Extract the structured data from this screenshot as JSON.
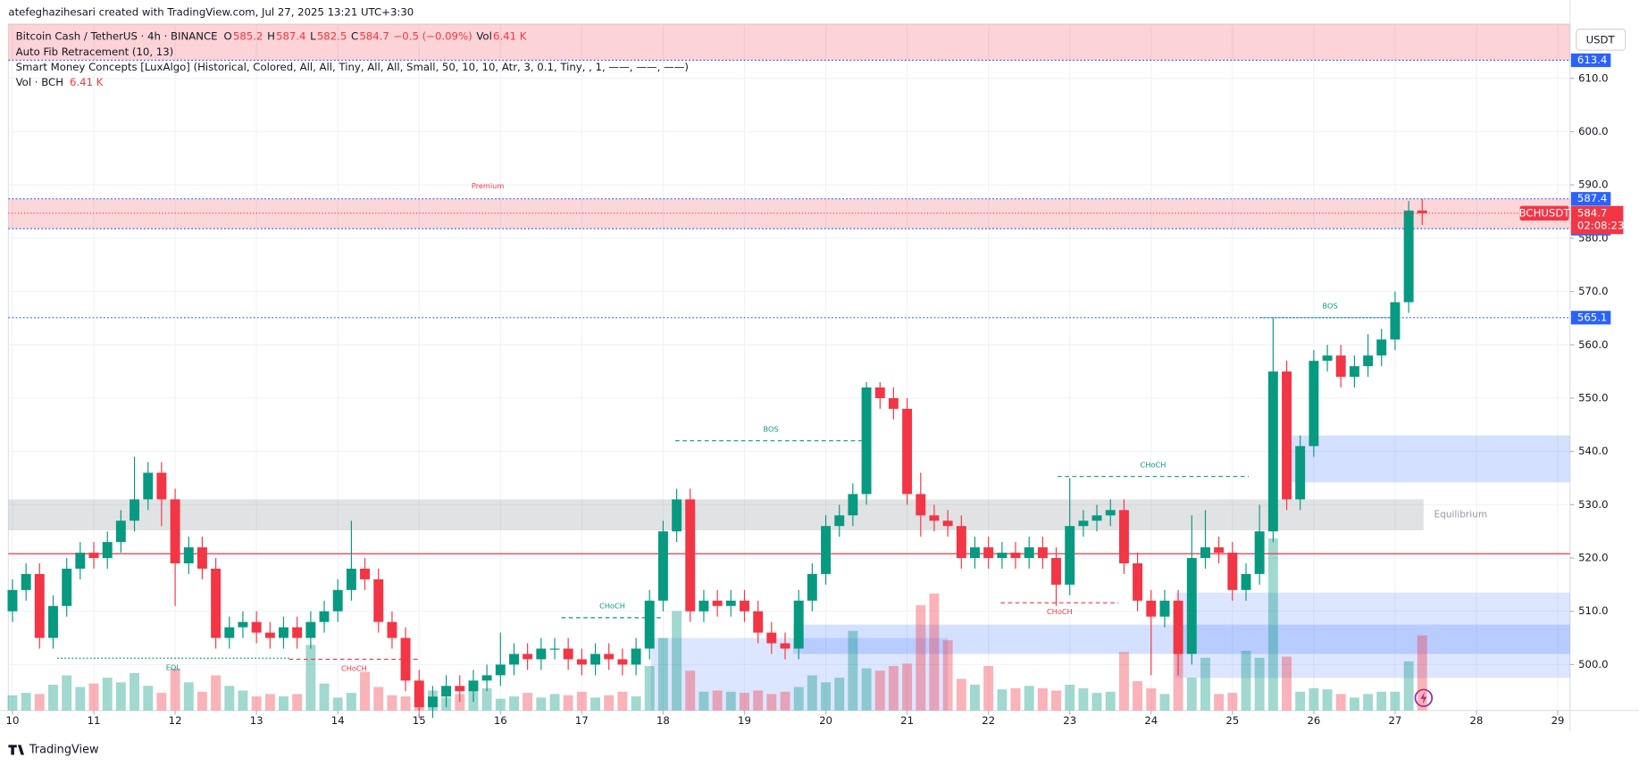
{
  "header": {
    "attribution": "atefeghazihesari created with TradingView.com, Jul 27, 2025 13:21 UTC+3:30"
  },
  "legend": {
    "symbol": "Bitcoin Cash / TetherUS · 4h · BINANCE",
    "o": "O",
    "h": "H",
    "l": "L",
    "c": "C",
    "change": "−0.5 (−0.09%)",
    "vol": "Vol",
    "vol_value": "6.41 K",
    "fib": "Auto Fib Retracement (10, 13)",
    "smc": "Smart Money Concepts [LuxAlgo] (Historical, Colored, All, All, Tiny, All, All, Small, 50, 10, 10, Atr, 3, 0.1, Tiny, , 1, ——, ——, ——)",
    "vol_study": "Vol · BCH",
    "vol_study_value": "6.41 K"
  },
  "footer": "TradingView",
  "chart_data": {
    "type": "candlestick",
    "currency": "USDT",
    "symbol": "BCHUSDT",
    "countdown": "02:08:23",
    "up_color": "#089981",
    "down_color": "#f23645",
    "volume_up_color": "rgba(8,153,129,0.38)",
    "volume_down_color": "rgba(242,54,69,0.38)",
    "grid": true,
    "xlim": [
      9.95,
      29.15
    ],
    "xticks": [
      10,
      11,
      12,
      13,
      14,
      15,
      16,
      17,
      18,
      19,
      20,
      21,
      22,
      23,
      24,
      25,
      26,
      27,
      28,
      29
    ],
    "ylim": [
      491.4,
      620.2
    ],
    "yticks": [
      {
        "value": 500,
        "label": "500.0"
      },
      {
        "value": 510,
        "label": "510.0"
      },
      {
        "value": 520,
        "label": "520.0"
      },
      {
        "value": 530,
        "label": "530.0"
      },
      {
        "value": 540,
        "label": "540.0"
      },
      {
        "value": 550,
        "label": "550.0"
      },
      {
        "value": 560,
        "label": "560.0"
      },
      {
        "value": 570,
        "label": "570.0"
      },
      {
        "value": 580,
        "label": "580.0"
      },
      {
        "value": 590,
        "label": "590.0"
      },
      {
        "value": 600,
        "label": "600.0"
      },
      {
        "value": 610,
        "label": "610.0"
      }
    ],
    "vlim": [
      0,
      58.7
    ],
    "x": [
      10,
      10.167,
      10.333,
      10.5,
      10.667,
      10.833,
      11,
      11.167,
      11.333,
      11.5,
      11.667,
      11.833,
      12,
      12.167,
      12.333,
      12.5,
      12.667,
      12.833,
      13,
      13.167,
      13.333,
      13.5,
      13.667,
      13.833,
      14,
      14.167,
      14.333,
      14.5,
      14.667,
      14.833,
      15,
      15.167,
      15.333,
      15.5,
      15.667,
      15.833,
      16,
      16.167,
      16.333,
      16.5,
      16.667,
      16.833,
      17,
      17.167,
      17.333,
      17.5,
      17.667,
      17.833,
      18,
      18.167,
      18.333,
      18.5,
      18.667,
      18.833,
      19,
      19.167,
      19.333,
      19.5,
      19.667,
      19.833,
      20,
      20.167,
      20.333,
      20.5,
      20.667,
      20.833,
      21,
      21.167,
      21.333,
      21.5,
      21.667,
      21.833,
      22,
      22.167,
      22.333,
      22.5,
      22.667,
      22.833,
      23,
      23.167,
      23.333,
      23.5,
      23.667,
      23.833,
      24,
      24.167,
      24.333,
      24.5,
      24.667,
      24.833,
      25,
      25.167,
      25.333,
      25.5,
      25.667,
      25.833,
      26,
      26.167,
      26.333,
      26.5,
      26.667,
      26.833,
      27,
      27.167,
      27.333
    ],
    "open": [
      510,
      514,
      517,
      505,
      511,
      518,
      521,
      520,
      523,
      527,
      531,
      536,
      531,
      519,
      522,
      518,
      505,
      507,
      508,
      506,
      505,
      507,
      505,
      508,
      510,
      514,
      518,
      516,
      508,
      505,
      497,
      492,
      494,
      496,
      495,
      497,
      498,
      500,
      502,
      501,
      503,
      503,
      501,
      500,
      502,
      501,
      500,
      503,
      512,
      525,
      531,
      510,
      512,
      511,
      512,
      510,
      506,
      504,
      503,
      512,
      517,
      526,
      528,
      532,
      552,
      550,
      548,
      532,
      528,
      527,
      526,
      520,
      522,
      520,
      521,
      520,
      522,
      520,
      515,
      526,
      527,
      528,
      529,
      519,
      512,
      509,
      512,
      502,
      520,
      522,
      521,
      514,
      517,
      525,
      555,
      531,
      541,
      557,
      558,
      554,
      556,
      558,
      561,
      568,
      585.2
    ],
    "high": [
      516,
      519,
      519,
      513,
      520,
      523,
      523,
      525,
      529,
      539,
      538,
      538,
      533,
      524,
      524,
      520,
      509,
      510,
      510,
      508,
      509,
      509,
      510,
      512,
      516,
      527,
      520,
      518,
      510,
      507,
      499,
      496,
      498,
      498,
      499,
      500,
      506,
      504,
      504,
      505,
      505,
      505,
      503,
      504,
      504,
      503,
      505,
      514,
      527,
      533,
      533,
      514,
      514,
      514,
      514,
      512,
      508,
      506,
      514,
      519,
      528,
      530,
      534,
      553,
      553,
      552,
      550,
      536,
      530,
      529,
      528,
      524,
      524,
      523,
      523,
      524,
      524,
      522,
      535,
      529,
      530,
      531,
      531,
      521,
      514,
      514,
      514,
      528,
      529,
      524,
      523,
      519,
      530,
      565.1,
      557,
      543,
      559,
      560,
      560,
      558,
      562,
      563,
      570,
      587,
      587.4
    ],
    "low": [
      508,
      512,
      503,
      503,
      509,
      516,
      518,
      518,
      521,
      525,
      529,
      526,
      511,
      517,
      516,
      503,
      503,
      505,
      504,
      503,
      503,
      503,
      503,
      506,
      508,
      512,
      514,
      506,
      503,
      495,
      490,
      490,
      492,
      493,
      493,
      495,
      496,
      498,
      499,
      499,
      501,
      499,
      498,
      498,
      499,
      498,
      498,
      501,
      510,
      523,
      508,
      508,
      509,
      509,
      508,
      504,
      502,
      501,
      501,
      510,
      515,
      524,
      526,
      530,
      548,
      546,
      530,
      524,
      525,
      524,
      518,
      518,
      518,
      518,
      518,
      518,
      518,
      511,
      513,
      524,
      525,
      526,
      517,
      510,
      498,
      507,
      498,
      500,
      518,
      519,
      512,
      512,
      515,
      523,
      529,
      529,
      539,
      555,
      552,
      552,
      554,
      556,
      559,
      566,
      582.5
    ],
    "close": [
      514,
      517,
      505,
      511,
      518,
      521,
      520,
      523,
      527,
      531,
      536,
      531,
      519,
      522,
      518,
      505,
      507,
      508,
      506,
      505,
      507,
      505,
      508,
      510,
      514,
      518,
      516,
      508,
      505,
      497,
      492,
      494,
      496,
      495,
      497,
      498,
      500,
      502,
      501,
      503,
      503,
      501,
      500,
      502,
      501,
      500,
      503,
      512,
      525,
      531,
      510,
      512,
      511,
      512,
      510,
      506,
      504,
      503,
      512,
      517,
      526,
      528,
      532,
      552,
      550,
      548,
      532,
      528,
      527,
      526,
      520,
      522,
      520,
      521,
      520,
      522,
      520,
      515,
      526,
      527,
      528,
      529,
      519,
      512,
      509,
      512,
      502,
      520,
      522,
      521,
      514,
      517,
      525,
      555,
      531,
      541,
      557,
      558,
      554,
      556,
      558,
      561,
      568,
      585.2,
      584.7
    ],
    "volume": [
      1.3,
      1.5,
      1.4,
      2.2,
      3.0,
      2.0,
      2.3,
      2.8,
      2.4,
      3.2,
      2.1,
      1.5,
      3.6,
      2.4,
      1.6,
      3.0,
      2.1,
      1.7,
      1.2,
      1.4,
      1.2,
      1.4,
      5.6,
      2.3,
      1.1,
      1.5,
      3.3,
      2.0,
      1.3,
      1.2,
      1.1,
      1.7,
      1.1,
      1.4,
      1.9,
      1.9,
      1.0,
      1.2,
      1.5,
      1.1,
      1.4,
      1.3,
      1.6,
      1.1,
      1.3,
      1.6,
      1.2,
      3.8,
      6.2,
      8.5,
      3.4,
      1.6,
      1.7,
      1.6,
      1.5,
      1.7,
      1.4,
      1.6,
      2.0,
      3.0,
      2.4,
      2.8,
      6.8,
      3.6,
      3.4,
      3.8,
      4.0,
      9.0,
      10.0,
      6.0,
      2.7,
      2.2,
      3.8,
      1.8,
      1.9,
      2.1,
      1.9,
      1.7,
      2.2,
      1.9,
      1.5,
      1.6,
      5.0,
      2.5,
      1.9,
      1.4,
      5.1,
      2.8,
      4.5,
      1.4,
      1.5,
      5.1,
      4.5,
      14.7,
      4.6,
      1.6,
      1.9,
      1.8,
      1.4,
      1.1,
      1.4,
      1.6,
      1.6,
      4.2,
      6.41
    ],
    "zones": [
      {
        "ymin": 613.4,
        "ymax": 620.2,
        "xmin": 9.95,
        "xmax": 29.15,
        "color": "rgba(242,54,69,0.22)"
      },
      {
        "label": "Premium",
        "label_pos": "above",
        "ymin": 581.8,
        "ymax": 587.4,
        "xmin": 9.95,
        "xmax": 29.15,
        "color": "rgba(242,54,69,0.2)"
      },
      {
        "label": "Equilibrium",
        "label_pos": "right",
        "ymin": 525.2,
        "ymax": 531,
        "xmin": 9.95,
        "xmax": 27.35,
        "color": "rgba(120,123,134,0.22)"
      },
      {
        "ymin": 534.2,
        "ymax": 543,
        "xmin": 25.7,
        "xmax": 29.15,
        "color": "rgba(41,98,255,0.2)"
      },
      {
        "ymin": 497.5,
        "ymax": 513.5,
        "xmin": 24.3,
        "xmax": 29.15,
        "color": "rgba(41,98,255,0.16)"
      },
      {
        "ymin": 502,
        "ymax": 507.5,
        "xmin": 19.6,
        "xmax": 29.15,
        "color": "rgba(41,98,255,0.2)"
      },
      {
        "ymin": 491.4,
        "ymax": 505,
        "xmin": 17.85,
        "xmax": 21.5,
        "color": "rgba(41,98,255,0.16)"
      }
    ],
    "levels": [
      {
        "price": 613.4,
        "color": "#2962ff",
        "style": "dotted",
        "tag": true
      },
      {
        "price": 587.4,
        "color": "#2962ff",
        "style": "dotted",
        "tag": true
      },
      {
        "price": 581.8,
        "color": "#2962ff",
        "style": "dotted",
        "tag": true
      },
      {
        "price": 565.1,
        "color": "#2962ff",
        "style": "dotted",
        "tag": true
      },
      {
        "price": 520.8,
        "color": "#f23645",
        "style": "solid",
        "tag": false
      }
    ],
    "structures": [
      {
        "label": "EQL",
        "price": 501.2,
        "x0": 10.55,
        "x1": 13.4,
        "color": "#089981",
        "style": "dotted",
        "label_side": "below"
      },
      {
        "label": "CHoCH",
        "price": 501,
        "x0": 13.4,
        "x1": 15,
        "color": "#f23645",
        "style": "dashed",
        "label_side": "below"
      },
      {
        "label": "CHoCH",
        "price": 508.8,
        "x0": 16.75,
        "x1": 18,
        "color": "#089981",
        "style": "dashed",
        "label_side": "above"
      },
      {
        "label": "BOS",
        "price": 542,
        "x0": 18.15,
        "x1": 20.5,
        "color": "#089981",
        "style": "dashed",
        "label_side": "above"
      },
      {
        "label": "CHoCH",
        "price": 511.6,
        "x0": 22.15,
        "x1": 23.6,
        "color": "#f23645",
        "style": "dashed",
        "label_side": "below"
      },
      {
        "label": "CHoCH",
        "price": 535.3,
        "x0": 22.85,
        "x1": 25.2,
        "color": "#089981",
        "style": "dashed",
        "label_side": "above"
      },
      {
        "label": "BOS",
        "price": 565.1,
        "x0": 25.35,
        "x1": 27.05,
        "color": "#089981",
        "style": "dotted",
        "label_side": "above"
      }
    ]
  }
}
